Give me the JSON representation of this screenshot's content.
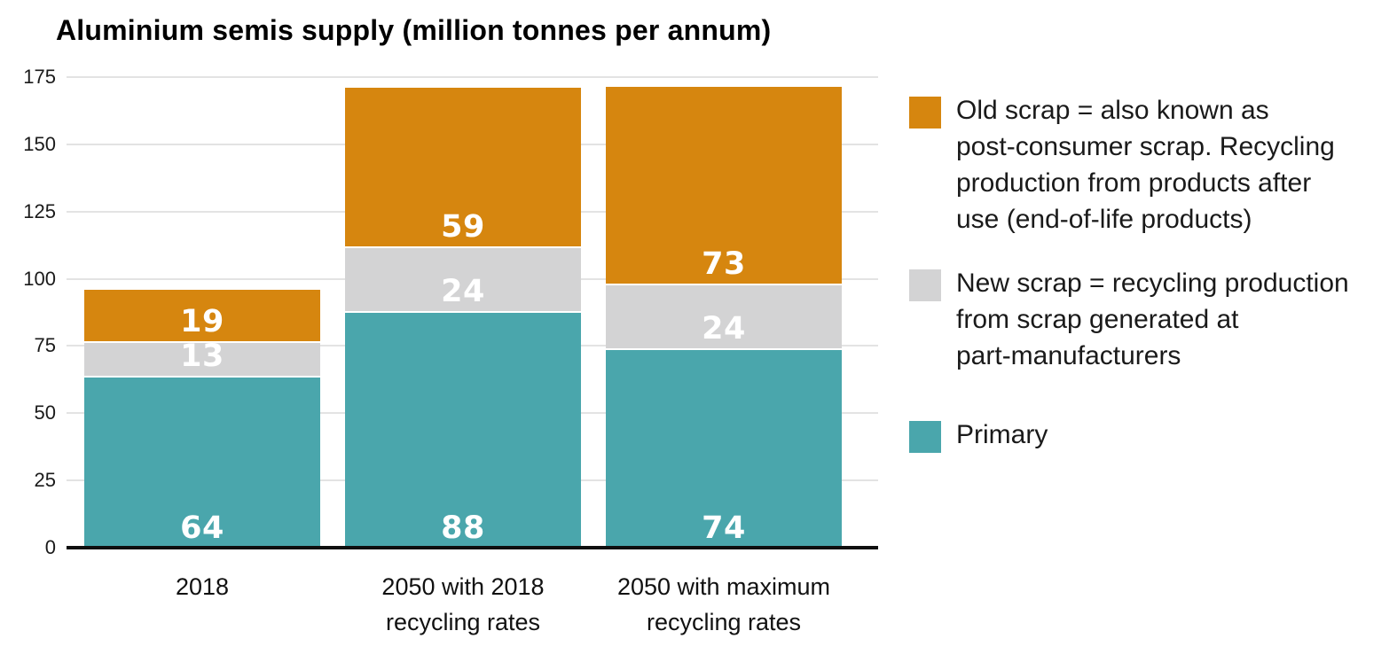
{
  "title": "Aluminium semis supply (million tonnes per annum)",
  "chart_data": {
    "type": "bar",
    "stacked": true,
    "title": "Aluminium semis supply (million tonnes per annum)",
    "unit_label": "million tonnes per annum",
    "categories": [
      {
        "lines": [
          "2018"
        ]
      },
      {
        "lines": [
          "2050 with 2018",
          "recycling rates"
        ]
      },
      {
        "lines": [
          "2050 with maximum",
          "recycling rates"
        ]
      }
    ],
    "series": [
      {
        "name": "Primary",
        "color": "#4AA6AC",
        "values": [
          64,
          88,
          74
        ]
      },
      {
        "name": "New scrap",
        "color": "#D3D3D4",
        "values": [
          13,
          24,
          24
        ]
      },
      {
        "name": "Old scrap",
        "color": "#D6860F",
        "values": [
          19,
          59,
          73
        ]
      }
    ],
    "ylim": [
      0,
      175
    ],
    "yticks": [
      0,
      25,
      50,
      75,
      100,
      125,
      150,
      175
    ],
    "grid": true,
    "legend_position": "right",
    "value_label_color": "#FFFFFF"
  },
  "legend": {
    "items": [
      {
        "series": "Old scrap",
        "color": "#D6860F",
        "lines": [
          "Old scrap = also known as",
          "post-consumer scrap. Recycling",
          "production from products after",
          "use (end-of-life products)"
        ]
      },
      {
        "series": "New scrap",
        "color": "#D3D3D4",
        "lines": [
          "New scrap = recycling production",
          "from scrap generated at",
          "part-manufacturers"
        ]
      },
      {
        "series": "Primary",
        "color": "#4AA6AC",
        "lines": [
          "Primary"
        ]
      }
    ]
  },
  "colors": {
    "old_scrap": "#D6860F",
    "new_scrap": "#D3D3D4",
    "primary": "#4AA6AC",
    "gridline": "#E3E3E3",
    "axis": "#0F0F0F",
    "text": "#1A1A1A",
    "background": "#FFFFFF"
  }
}
